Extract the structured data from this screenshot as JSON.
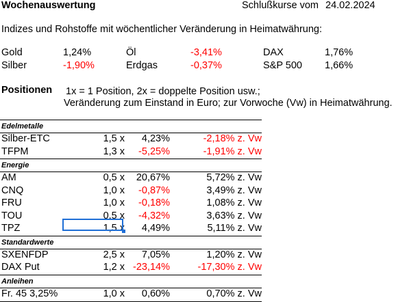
{
  "header": {
    "title": "Wochenauswertung",
    "close_label": "Schlußkurse vom",
    "close_date": "24.02.2024"
  },
  "indices": {
    "heading": "Indizes und Rohstoffe mit wöchentlicher Veränderung in Heimatwährung:",
    "rows": [
      [
        {
          "name": "Gold",
          "value": "1,24%",
          "negative": false
        },
        {
          "name": "Öl",
          "value": "-3,41%",
          "negative": true
        },
        {
          "name": "DAX",
          "value": "1,76%",
          "negative": false
        }
      ],
      [
        {
          "name": "Silber",
          "value": "-1,90%",
          "negative": true
        },
        {
          "name": "Erdgas",
          "value": "-0,37%",
          "negative": true
        },
        {
          "name": "S&P 500",
          "value": "1,66%",
          "negative": false
        }
      ]
    ]
  },
  "positions": {
    "label": "Positionen",
    "note_line1": "1x = 1 Position, 2x = doppelte Position usw.;",
    "note_line2": "Veränderung zum Einstand in Euro; zur Vorwoche (Vw) in Heimatwährung."
  },
  "groups": [
    {
      "category": "Edelmetalle",
      "rows": [
        {
          "name": "Silber-ETC",
          "qty": "1,5 x",
          "change": "4,23%",
          "change_negative": false,
          "weekly": "-2,18% z. Vw",
          "weekly_negative": true
        },
        {
          "name": "TFPM",
          "qty": "1,3 x",
          "change": "-5,25%",
          "change_negative": true,
          "weekly": "-1,91% z. Vw",
          "weekly_negative": true
        }
      ]
    },
    {
      "category": "Energie",
      "rows": [
        {
          "name": "AM",
          "qty": "0,5 x",
          "change": "20,67%",
          "change_negative": false,
          "weekly": "5,72% z. Vw",
          "weekly_negative": false
        },
        {
          "name": "CNQ",
          "qty": "1,0 x",
          "change": "-0,87%",
          "change_negative": true,
          "weekly": "3,49% z. Vw",
          "weekly_negative": false
        },
        {
          "name": "FRU",
          "qty": "1,0 x",
          "change": "-0,18%",
          "change_negative": true,
          "weekly": "1,08% z. Vw",
          "weekly_negative": false
        },
        {
          "name": "TOU",
          "qty": "0,5 x",
          "change": "-4,32%",
          "change_negative": true,
          "weekly": "3,63% z. Vw",
          "weekly_negative": false
        },
        {
          "name": "TPZ",
          "qty": "1,5 x",
          "change": "4,49%",
          "change_negative": false,
          "weekly": "5,11% z. Vw",
          "weekly_negative": false
        }
      ]
    },
    {
      "category": "Standardwerte",
      "rows": [
        {
          "name": "SXENFDP",
          "qty": "2,5 x",
          "change": "7,05%",
          "change_negative": false,
          "weekly": "1,20% z. Vw",
          "weekly_negative": false
        },
        {
          "name": "DAX Put",
          "qty": "1,2 x",
          "change": "-23,14%",
          "change_negative": true,
          "weekly": "-17,30% z. Vw",
          "weekly_negative": true
        }
      ]
    },
    {
      "category": "Anleihen",
      "rows": [
        {
          "name": "Fr. 45 3,25%",
          "qty": "1,0 x",
          "change": "0,60%",
          "change_negative": false,
          "weekly": "0,70% z. Vw",
          "weekly_negative": false
        }
      ]
    }
  ],
  "colors": {
    "negative": "#ff0000",
    "selection": "#1f6fd6"
  }
}
